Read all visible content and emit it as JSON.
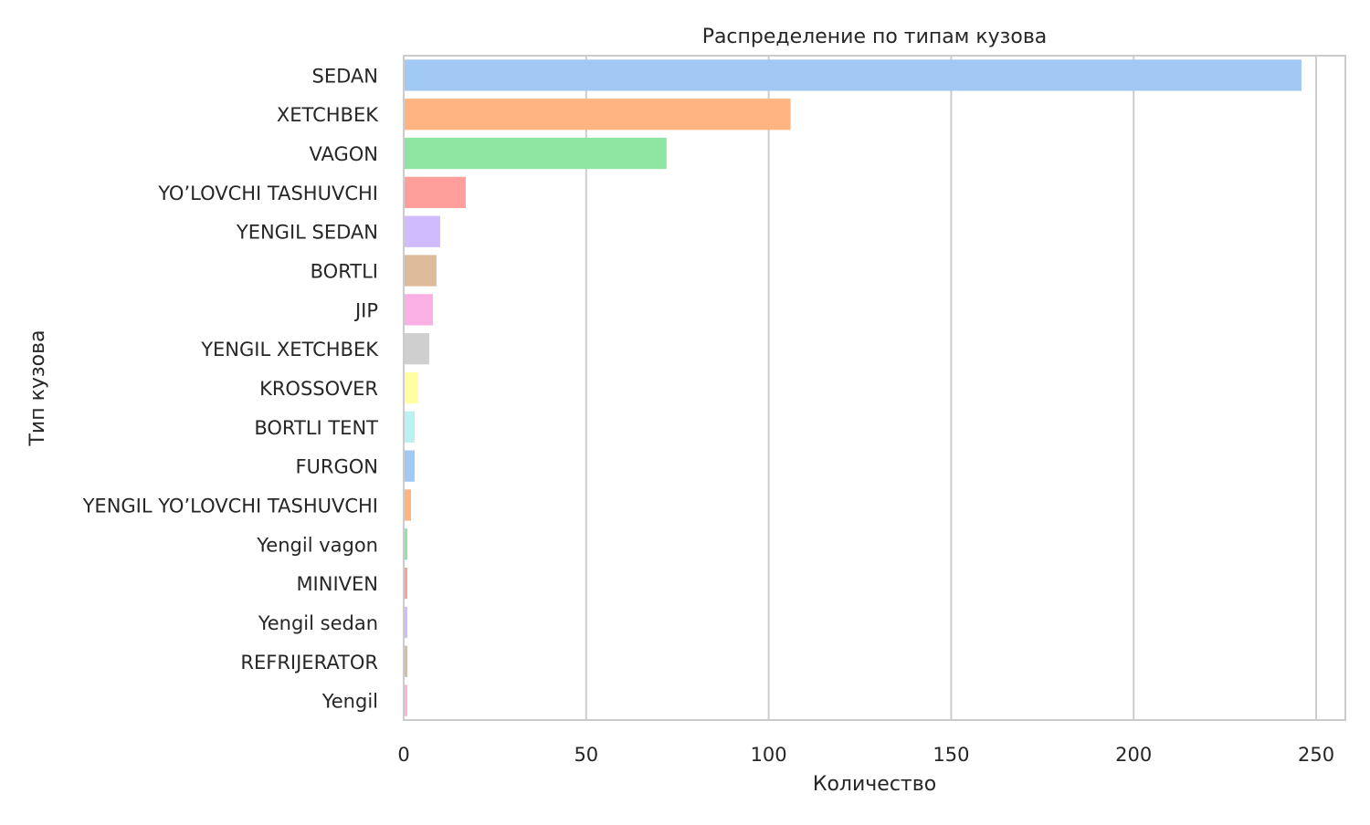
{
  "chart_data": {
    "type": "bar",
    "orientation": "horizontal",
    "title": "Распределение по типам кузова",
    "xlabel": "Количество",
    "ylabel": "Тип кузова",
    "xlim": [
      0,
      258
    ],
    "xticks": [
      0,
      50,
      100,
      150,
      200,
      250
    ],
    "grid": "vertical",
    "categories": [
      "SEDAN",
      "XETCHBEK",
      "VAGON",
      "YO’LOVCHI TASHUVCHI",
      "YENGIL SEDAN",
      "BORTLI",
      "JIP",
      "YENGIL XETCHBEK",
      "KROSSOVER",
      "BORTLI TENT",
      "FURGON",
      "YENGIL YO’LOVCHI TASHUVCHI",
      "Yengil vagon",
      "MINIVEN",
      "Yengil sedan",
      "REFRIJERATOR",
      "Yengil"
    ],
    "values": [
      246,
      106,
      72,
      17,
      10,
      9,
      8,
      7,
      4,
      3,
      3,
      2,
      1,
      1,
      1,
      1,
      1
    ],
    "colors": [
      "#a1c9f4",
      "#ffb482",
      "#8de5a1",
      "#ff9f9b",
      "#d0bbff",
      "#debb9b",
      "#fab0e4",
      "#cfcfcf",
      "#fffea3",
      "#b9f2f0",
      "#a1c9f4",
      "#ffb482",
      "#8de5a1",
      "#ff9f9b",
      "#d0bbff",
      "#debb9b",
      "#fab0e4"
    ]
  }
}
